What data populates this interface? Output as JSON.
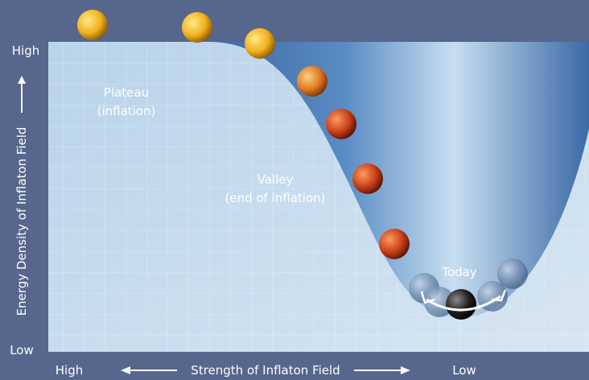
{
  "y_axis": {
    "label": "Energy Density of Inflaton Field",
    "high": "High",
    "low": "Low"
  },
  "x_axis": {
    "label": "Strength of Inflaton Field",
    "high": "High",
    "low": "Low"
  },
  "annotations": {
    "plateau": [
      "Plateau",
      "(inflation)"
    ],
    "valley": [
      "Valley",
      "(end of inflation)"
    ],
    "today": "Today"
  }
}
